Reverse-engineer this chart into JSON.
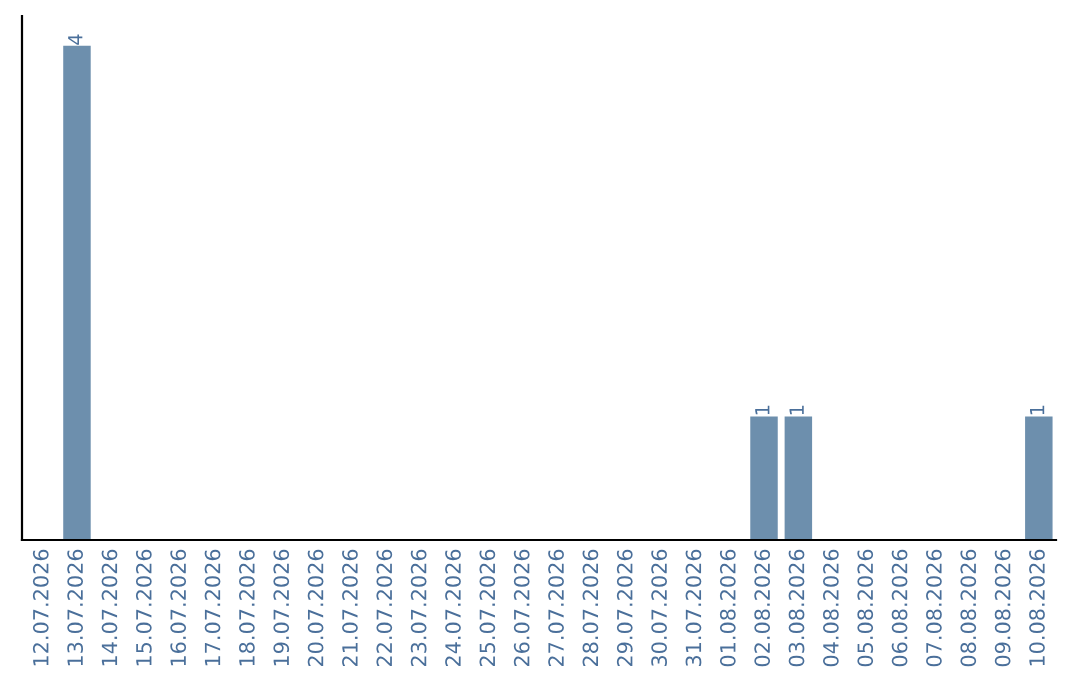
{
  "chart_data": {
    "type": "bar",
    "categories": [
      "12.07.2026",
      "13.07.2026",
      "14.07.2026",
      "15.07.2026",
      "16.07.2026",
      "17.07.2026",
      "18.07.2026",
      "19.07.2026",
      "20.07.2026",
      "21.07.2026",
      "22.07.2026",
      "23.07.2026",
      "24.07.2026",
      "25.07.2026",
      "26.07.2026",
      "27.07.2026",
      "28.07.2026",
      "29.07.2026",
      "30.07.2026",
      "31.07.2026",
      "01.08.2026",
      "02.08.2026",
      "03.08.2026",
      "04.08.2026",
      "05.08.2026",
      "06.08.2026",
      "07.08.2026",
      "08.08.2026",
      "09.08.2026",
      "10.08.2026"
    ],
    "values": [
      0,
      4,
      0,
      0,
      0,
      0,
      0,
      0,
      0,
      0,
      0,
      0,
      0,
      0,
      0,
      0,
      0,
      0,
      0,
      0,
      0,
      1,
      1,
      0,
      0,
      0,
      0,
      0,
      0,
      1
    ],
    "value_labels": [
      null,
      "4",
      null,
      null,
      null,
      null,
      null,
      null,
      null,
      null,
      null,
      null,
      null,
      null,
      null,
      null,
      null,
      null,
      null,
      null,
      null,
      "1",
      "1",
      null,
      null,
      null,
      null,
      null,
      null,
      "1"
    ],
    "color": "#6d8fad",
    "grid": false,
    "legend": false,
    "tick_labels": "x"
  }
}
